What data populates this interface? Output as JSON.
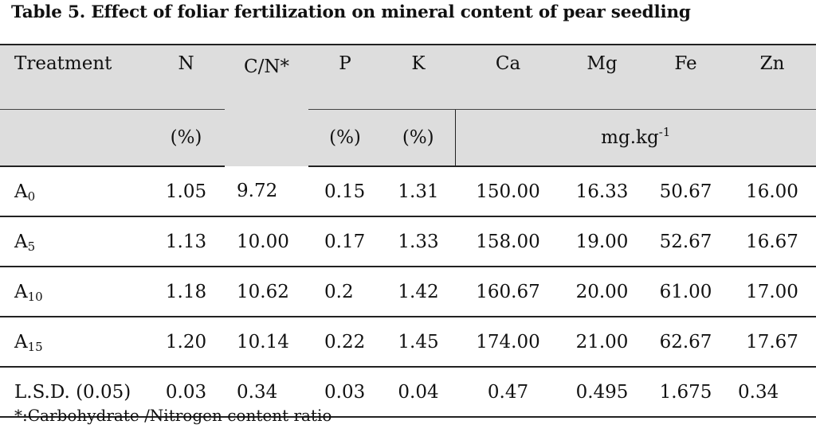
{
  "caption": "Table 5. Effect of foliar fertilization on mineral content of pear seedling",
  "headers": {
    "treatment": "Treatment",
    "n": "N",
    "cn": "C/N*",
    "p": "P",
    "k": "K",
    "ca": "Ca",
    "mg": "Mg",
    "fe": "Fe",
    "zn": "Zn"
  },
  "units": {
    "n": "(%)",
    "p": "(%)",
    "k": "(%)",
    "mgkg_base": "mg.kg",
    "mgkg_exp": "-1"
  },
  "rows": [
    {
      "base": "A",
      "sub": "0",
      "n": "1.05",
      "cn": "9.72",
      "p": "0.15",
      "k": "1.31",
      "ca": "150.00",
      "mg": "16.33",
      "fe": "50.67",
      "zn": "16.00"
    },
    {
      "base": "A",
      "sub": "5",
      "n": "1.13",
      "cn": "10.00",
      "p": "0.17",
      "k": "1.33",
      "ca": "158.00",
      "mg": "19.00",
      "fe": "52.67",
      "zn": "16.67"
    },
    {
      "base": "A",
      "sub": "10",
      "n": "1.18",
      "cn": "10.62",
      "p": "0.2",
      "k": "1.42",
      "ca": "160.67",
      "mg": "20.00",
      "fe": "61.00",
      "zn": "17.00"
    },
    {
      "base": "A",
      "sub": "15",
      "n": "1.20",
      "cn": "10.14",
      "p": "0.22",
      "k": "1.45",
      "ca": "174.00",
      "mg": "21.00",
      "fe": "62.67",
      "zn": "17.67"
    }
  ],
  "lsd": {
    "label": "L.S.D. (0.05)",
    "n": "0.03",
    "cn": "0.34",
    "p": "0.03",
    "k": "0.04",
    "ca": "0.47",
    "mg": "0.495",
    "fe": "1.675",
    "zn": "0.34"
  },
  "footnote": "*:Carbohydrate /Nitrogen content ratio"
}
